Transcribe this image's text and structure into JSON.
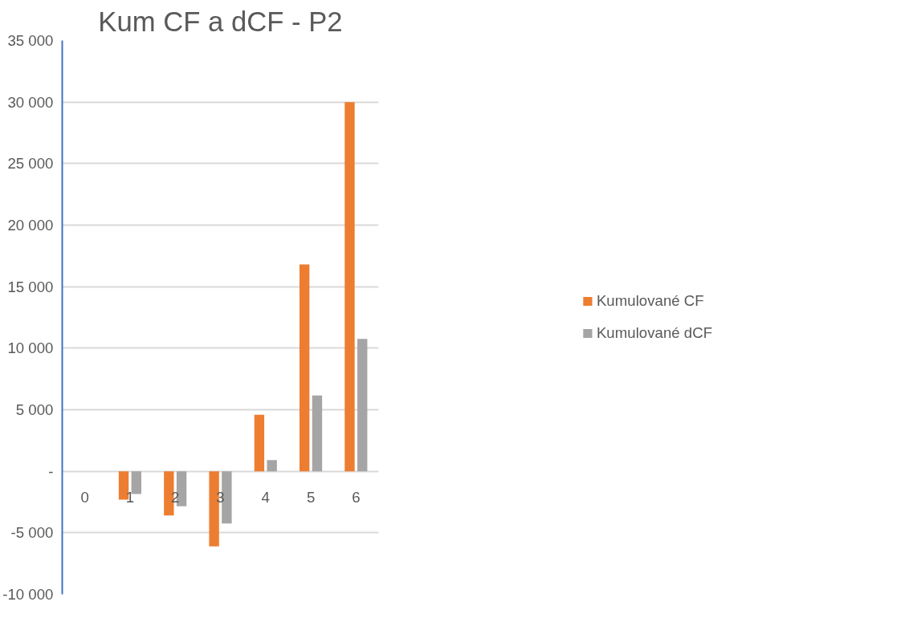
{
  "chart_data": {
    "type": "bar",
    "title": "Kum CF a dCF - P2",
    "categories": [
      "0",
      "1",
      "2",
      "3",
      "4",
      "5",
      "6"
    ],
    "series": [
      {
        "name": "Kumulované CF",
        "color": "#ed7d31",
        "values": [
          0,
          -2300,
          -3600,
          -6100,
          4600,
          16800,
          30000
        ]
      },
      {
        "name": "Kumulované dCF",
        "color": "#a5a5a5",
        "values": [
          0,
          -1850,
          -2850,
          -4250,
          900,
          6150,
          10750
        ]
      }
    ],
    "ylim": [
      -10000,
      35000
    ],
    "yticks": [
      {
        "value": -10000,
        "label": "-10 000"
      },
      {
        "value": -5000,
        "label": "-5 000"
      },
      {
        "value": 0,
        "label": "-"
      },
      {
        "value": 5000,
        "label": "5 000"
      },
      {
        "value": 10000,
        "label": "10 000"
      },
      {
        "value": 15000,
        "label": "15 000"
      },
      {
        "value": 20000,
        "label": "20 000"
      },
      {
        "value": 25000,
        "label": "25 000"
      },
      {
        "value": 30000,
        "label": "30 000"
      },
      {
        "value": 35000,
        "label": "35 000"
      }
    ],
    "grid": "y",
    "legend": "right"
  }
}
